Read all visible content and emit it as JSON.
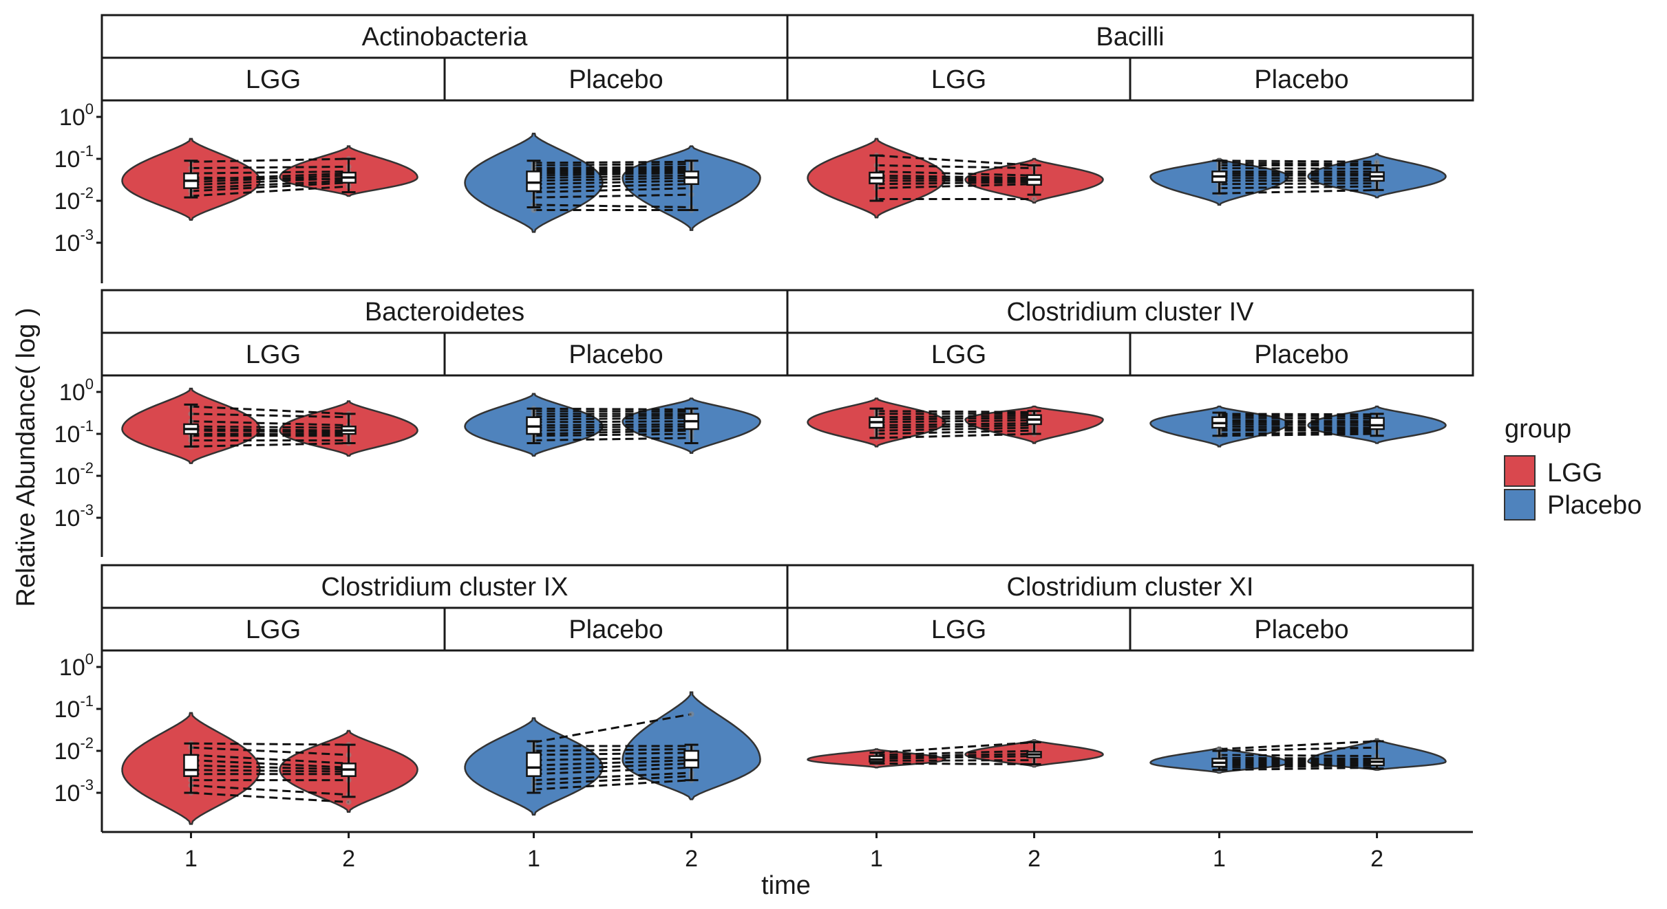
{
  "chart_data": {
    "type": "violin",
    "xlabel": "time",
    "ylabel": "Relative Abundance( log )",
    "x_ticks": [
      "1",
      "2"
    ],
    "y_scale": "log10",
    "ylim": [
      0.0001,
      1
    ],
    "y_ticks": [
      {
        "base": "10",
        "exp": "0",
        "value": 1
      },
      {
        "base": "10",
        "exp": "-1",
        "value": 0.1
      },
      {
        "base": "10",
        "exp": "-2",
        "value": 0.01
      },
      {
        "base": "10",
        "exp": "-3",
        "value": 0.001
      }
    ],
    "legend": {
      "title": "group",
      "placement": "right",
      "items": [
        {
          "label": "LGG",
          "color": "#D9484E"
        },
        {
          "label": "Placebo",
          "color": "#4F83BD"
        }
      ]
    },
    "panels": [
      {
        "taxon": "Actinobacteria",
        "group": "LGG",
        "series": [
          {
            "time": "1",
            "median": 0.03,
            "q1": 0.02,
            "q3": 0.045,
            "lo": 0.012,
            "hi": 0.09,
            "vmin": 0.0035,
            "vmax": 0.3
          },
          {
            "time": "2",
            "median": 0.036,
            "q1": 0.027,
            "q3": 0.047,
            "lo": 0.016,
            "hi": 0.1,
            "vmin": 0.013,
            "vmax": 0.2
          }
        ],
        "pairs": [
          [
            0.013,
            0.022
          ],
          [
            0.017,
            0.027
          ],
          [
            0.02,
            0.03
          ],
          [
            0.024,
            0.035
          ],
          [
            0.028,
            0.04
          ],
          [
            0.032,
            0.045
          ],
          [
            0.036,
            0.032
          ],
          [
            0.045,
            0.05
          ],
          [
            0.06,
            0.065
          ],
          [
            0.085,
            0.1
          ]
        ]
      },
      {
        "taxon": "Actinobacteria",
        "group": "Placebo",
        "series": [
          {
            "time": "1",
            "median": 0.027,
            "q1": 0.017,
            "q3": 0.05,
            "lo": 0.007,
            "hi": 0.09,
            "vmin": 0.0018,
            "vmax": 0.4
          },
          {
            "time": "2",
            "median": 0.036,
            "q1": 0.025,
            "q3": 0.05,
            "lo": 0.006,
            "hi": 0.09,
            "vmin": 0.002,
            "vmax": 0.2
          }
        ],
        "pairs": [
          [
            0.006,
            0.006
          ],
          [
            0.008,
            0.007
          ],
          [
            0.012,
            0.014
          ],
          [
            0.016,
            0.02
          ],
          [
            0.02,
            0.025
          ],
          [
            0.025,
            0.03
          ],
          [
            0.03,
            0.035
          ],
          [
            0.035,
            0.04
          ],
          [
            0.04,
            0.046
          ],
          [
            0.045,
            0.05
          ],
          [
            0.05,
            0.055
          ],
          [
            0.055,
            0.06
          ],
          [
            0.06,
            0.065
          ],
          [
            0.07,
            0.075
          ],
          [
            0.08,
            0.085
          ]
        ]
      },
      {
        "taxon": "Bacilli",
        "group": "LGG",
        "series": [
          {
            "time": "1",
            "median": 0.035,
            "q1": 0.026,
            "q3": 0.047,
            "lo": 0.01,
            "hi": 0.12,
            "vmin": 0.004,
            "vmax": 0.3
          },
          {
            "time": "2",
            "median": 0.032,
            "q1": 0.024,
            "q3": 0.041,
            "lo": 0.014,
            "hi": 0.07,
            "vmin": 0.009,
            "vmax": 0.1
          }
        ],
        "pairs": [
          [
            0.011,
            0.011
          ],
          [
            0.02,
            0.025
          ],
          [
            0.025,
            0.028
          ],
          [
            0.03,
            0.03
          ],
          [
            0.035,
            0.032
          ],
          [
            0.04,
            0.035
          ],
          [
            0.05,
            0.04
          ],
          [
            0.07,
            0.06
          ],
          [
            0.12,
            0.07
          ]
        ]
      },
      {
        "taxon": "Bacilli",
        "group": "Placebo",
        "series": [
          {
            "time": "1",
            "median": 0.038,
            "q1": 0.028,
            "q3": 0.05,
            "lo": 0.015,
            "hi": 0.09,
            "vmin": 0.008,
            "vmax": 0.1
          },
          {
            "time": "2",
            "median": 0.038,
            "q1": 0.03,
            "q3": 0.048,
            "lo": 0.018,
            "hi": 0.07,
            "vmin": 0.012,
            "vmax": 0.13
          }
        ],
        "pairs": [
          [
            0.015,
            0.018
          ],
          [
            0.02,
            0.022
          ],
          [
            0.025,
            0.026
          ],
          [
            0.03,
            0.03
          ],
          [
            0.035,
            0.034
          ],
          [
            0.04,
            0.04
          ],
          [
            0.045,
            0.044
          ],
          [
            0.05,
            0.05
          ],
          [
            0.06,
            0.058
          ],
          [
            0.07,
            0.07
          ],
          [
            0.08,
            0.075
          ],
          [
            0.09,
            0.085
          ]
        ]
      },
      {
        "taxon": "Bacteroidetes",
        "group": "LGG",
        "series": [
          {
            "time": "1",
            "median": 0.13,
            "q1": 0.1,
            "q3": 0.17,
            "lo": 0.05,
            "hi": 0.5,
            "vmin": 0.02,
            "vmax": 1.2
          },
          {
            "time": "2",
            "median": 0.12,
            "q1": 0.1,
            "q3": 0.15,
            "lo": 0.06,
            "hi": 0.3,
            "vmin": 0.03,
            "vmax": 0.6
          }
        ],
        "pairs": [
          [
            0.05,
            0.06
          ],
          [
            0.07,
            0.07
          ],
          [
            0.09,
            0.09
          ],
          [
            0.1,
            0.1
          ],
          [
            0.12,
            0.11
          ],
          [
            0.13,
            0.12
          ],
          [
            0.15,
            0.14
          ],
          [
            0.2,
            0.16
          ],
          [
            0.3,
            0.25
          ],
          [
            0.45,
            0.3
          ]
        ]
      },
      {
        "taxon": "Bacteroidetes",
        "group": "Placebo",
        "series": [
          {
            "time": "1",
            "median": 0.15,
            "q1": 0.1,
            "q3": 0.25,
            "lo": 0.06,
            "hi": 0.4,
            "vmin": 0.03,
            "vmax": 0.9
          },
          {
            "time": "2",
            "median": 0.2,
            "q1": 0.13,
            "q3": 0.3,
            "lo": 0.06,
            "hi": 0.4,
            "vmin": 0.035,
            "vmax": 0.7
          }
        ],
        "pairs": [
          [
            0.07,
            0.08
          ],
          [
            0.09,
            0.1
          ],
          [
            0.1,
            0.12
          ],
          [
            0.12,
            0.13
          ],
          [
            0.14,
            0.15
          ],
          [
            0.16,
            0.17
          ],
          [
            0.19,
            0.2
          ],
          [
            0.22,
            0.24
          ],
          [
            0.26,
            0.27
          ],
          [
            0.3,
            0.3
          ],
          [
            0.35,
            0.34
          ],
          [
            0.4,
            0.38
          ]
        ]
      },
      {
        "taxon": "Clostridium cluster IV",
        "group": "LGG",
        "series": [
          {
            "time": "1",
            "median": 0.19,
            "q1": 0.14,
            "q3": 0.25,
            "lo": 0.08,
            "hi": 0.4,
            "vmin": 0.05,
            "vmax": 0.7
          },
          {
            "time": "2",
            "median": 0.22,
            "q1": 0.17,
            "q3": 0.28,
            "lo": 0.1,
            "hi": 0.35,
            "vmin": 0.06,
            "vmax": 0.45
          }
        ],
        "pairs": [
          [
            0.08,
            0.1
          ],
          [
            0.1,
            0.12
          ],
          [
            0.12,
            0.14
          ],
          [
            0.14,
            0.16
          ],
          [
            0.16,
            0.18
          ],
          [
            0.19,
            0.21
          ],
          [
            0.22,
            0.24
          ],
          [
            0.25,
            0.27
          ],
          [
            0.3,
            0.3
          ],
          [
            0.35,
            0.33
          ]
        ]
      },
      {
        "taxon": "Clostridium cluster IV",
        "group": "Placebo",
        "series": [
          {
            "time": "1",
            "median": 0.18,
            "q1": 0.14,
            "q3": 0.25,
            "lo": 0.09,
            "hi": 0.32,
            "vmin": 0.05,
            "vmax": 0.45
          },
          {
            "time": "2",
            "median": 0.16,
            "q1": 0.13,
            "q3": 0.24,
            "lo": 0.09,
            "hi": 0.3,
            "vmin": 0.06,
            "vmax": 0.45
          }
        ],
        "pairs": [
          [
            0.09,
            0.1
          ],
          [
            0.1,
            0.11
          ],
          [
            0.12,
            0.12
          ],
          [
            0.13,
            0.13
          ],
          [
            0.15,
            0.14
          ],
          [
            0.17,
            0.16
          ],
          [
            0.19,
            0.18
          ],
          [
            0.21,
            0.2
          ],
          [
            0.24,
            0.23
          ],
          [
            0.27,
            0.26
          ],
          [
            0.3,
            0.29
          ]
        ]
      },
      {
        "taxon": "Clostridium cluster IX",
        "group": "LGG",
        "series": [
          {
            "time": "1",
            "median": 0.0035,
            "q1": 0.0025,
            "q3": 0.008,
            "lo": 0.001,
            "hi": 0.015,
            "vmin": 0.00018,
            "vmax": 0.08
          },
          {
            "time": "2",
            "median": 0.0036,
            "q1": 0.0025,
            "q3": 0.005,
            "lo": 0.0008,
            "hi": 0.014,
            "vmin": 0.00035,
            "vmax": 0.03
          }
        ],
        "pairs": [
          [
            0.001,
            0.0006
          ],
          [
            0.0015,
            0.0009
          ],
          [
            0.002,
            0.002
          ],
          [
            0.0028,
            0.0028
          ],
          [
            0.0035,
            0.0032
          ],
          [
            0.0045,
            0.0036
          ],
          [
            0.006,
            0.004
          ],
          [
            0.008,
            0.005
          ],
          [
            0.012,
            0.008
          ],
          [
            0.015,
            0.014
          ]
        ]
      },
      {
        "taxon": "Clostridium cluster IX",
        "group": "Placebo",
        "series": [
          {
            "time": "1",
            "median": 0.004,
            "q1": 0.0025,
            "q3": 0.009,
            "lo": 0.001,
            "hi": 0.017,
            "vmin": 0.0003,
            "vmax": 0.06
          },
          {
            "time": "2",
            "median": 0.006,
            "q1": 0.004,
            "q3": 0.01,
            "lo": 0.002,
            "hi": 0.014,
            "vmin": 0.0007,
            "vmax": 0.25
          }
        ],
        "pairs": [
          [
            0.0012,
            0.002
          ],
          [
            0.0016,
            0.0025
          ],
          [
            0.002,
            0.003
          ],
          [
            0.0028,
            0.004
          ],
          [
            0.0035,
            0.005
          ],
          [
            0.0045,
            0.006
          ],
          [
            0.006,
            0.007
          ],
          [
            0.008,
            0.009
          ],
          [
            0.01,
            0.011
          ],
          [
            0.013,
            0.013
          ],
          [
            0.016,
            0.075
          ]
        ]
      },
      {
        "taxon": "Clostridium cluster XI",
        "group": "LGG",
        "series": [
          {
            "time": "1",
            "median": 0.0062,
            "q1": 0.0055,
            "q3": 0.0075,
            "lo": 0.005,
            "hi": 0.009,
            "vmin": 0.004,
            "vmax": 0.011
          },
          {
            "time": "2",
            "median": 0.0082,
            "q1": 0.007,
            "q3": 0.0095,
            "lo": 0.0048,
            "hi": 0.016,
            "vmin": 0.0042,
            "vmax": 0.018
          }
        ],
        "pairs": [
          [
            0.005,
            0.0048
          ],
          [
            0.0058,
            0.006
          ],
          [
            0.0065,
            0.0075
          ],
          [
            0.0072,
            0.0085
          ],
          [
            0.008,
            0.01
          ],
          [
            0.009,
            0.016
          ]
        ]
      },
      {
        "taxon": "Clostridium cluster XI",
        "group": "Placebo",
        "series": [
          {
            "time": "1",
            "median": 0.0052,
            "q1": 0.0042,
            "q3": 0.0065,
            "lo": 0.0035,
            "hi": 0.01,
            "vmin": 0.003,
            "vmax": 0.012
          },
          {
            "time": "2",
            "median": 0.0055,
            "q1": 0.0045,
            "q3": 0.0065,
            "lo": 0.0038,
            "hi": 0.017,
            "vmin": 0.0035,
            "vmax": 0.019
          }
        ],
        "pairs": [
          [
            0.0035,
            0.004
          ],
          [
            0.004,
            0.0045
          ],
          [
            0.0045,
            0.0048
          ],
          [
            0.005,
            0.0052
          ],
          [
            0.0055,
            0.0056
          ],
          [
            0.006,
            0.006
          ],
          [
            0.0068,
            0.0065
          ],
          [
            0.008,
            0.0075
          ],
          [
            0.01,
            0.012
          ],
          [
            0.011,
            0.017
          ]
        ]
      }
    ]
  }
}
